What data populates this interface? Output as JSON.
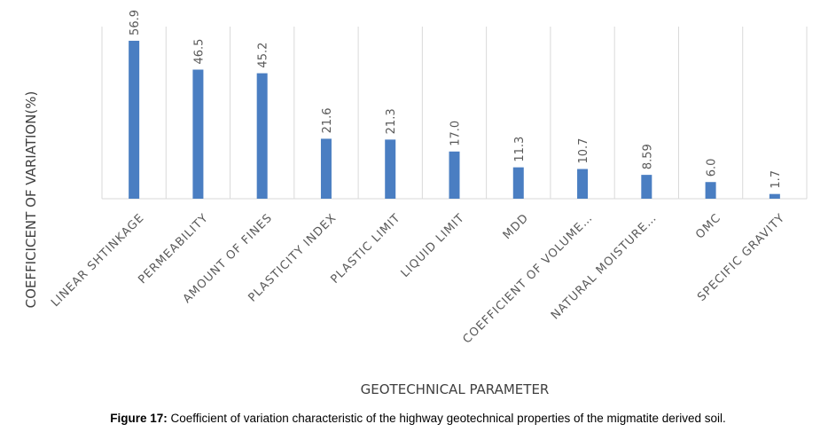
{
  "chart_data": {
    "type": "bar",
    "categories": [
      "LINEAR SHTINKAGE",
      "PERMEABILITY",
      "AMOUNT OF FINES",
      "PLASTICITY INDEX",
      "PLASTIC LIMIT",
      "LIQUID LIMIT",
      "MDD",
      "COEFFICIENT OF VOLUME…",
      "NATURAL MOISTURE…",
      "OMC",
      "SPECIFIC GRAVITY"
    ],
    "values": [
      56.9,
      46.5,
      45.2,
      21.6,
      21.3,
      17.0,
      11.3,
      10.7,
      8.59,
      6.0,
      1.7
    ],
    "value_labels": [
      "56.9",
      "46.5",
      "45.2",
      "21.6",
      "21.3",
      "17.0",
      "11.3",
      "10.7",
      "8.59",
      "6.0",
      "1.7"
    ],
    "title": "",
    "xlabel": "GEOTECHNICAL PARAMETER",
    "ylabel": "COEFFICICENT OF VARIATION(%)",
    "ylim": [
      0,
      62
    ],
    "grid": "vertical",
    "legend": "none",
    "bar_color": "#4a7ec2",
    "grid_color": "#d9d9d9"
  },
  "caption": {
    "label": "Figure 17:",
    "text": " Coefficient of variation characteristic of the highway geotechnical properties of the migmatite derived soil."
  }
}
